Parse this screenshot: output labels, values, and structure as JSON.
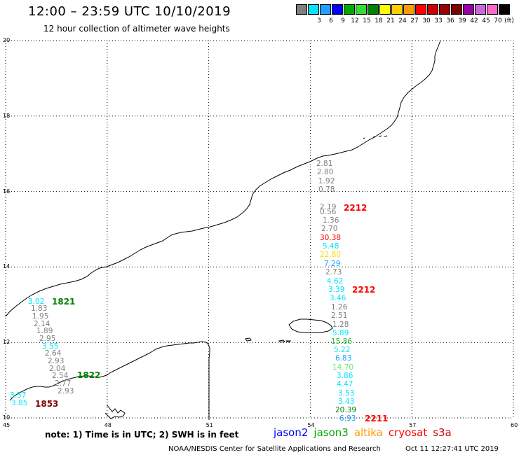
{
  "header": {
    "title": "12:00 – 23:59 UTC 10/10/2019",
    "subtitle": "12 hour collection of altimeter wave heights"
  },
  "legend": {
    "unit": "(ft)",
    "entries": [
      {
        "label": "",
        "color": "#7f7f7f"
      },
      {
        "label": "3",
        "color": "#00e5ff"
      },
      {
        "label": "6",
        "color": "#1fa0ff"
      },
      {
        "label": "9",
        "color": "#0000ff"
      },
      {
        "label": "12",
        "color": "#00aa00"
      },
      {
        "label": "15",
        "color": "#33dd33"
      },
      {
        "label": "18",
        "color": "#008000"
      },
      {
        "label": "21",
        "color": "#ffff00"
      },
      {
        "label": "24",
        "color": "#ffcc00"
      },
      {
        "label": "27",
        "color": "#ff9900"
      },
      {
        "label": "30",
        "color": "#ff0000"
      },
      {
        "label": "33",
        "color": "#cc0000"
      },
      {
        "label": "36",
        "color": "#990000"
      },
      {
        "label": "39",
        "color": "#800000"
      },
      {
        "label": "42",
        "color": "#9900aa"
      },
      {
        "label": "45",
        "color": "#cc66dd"
      },
      {
        "label": "70",
        "color": "#ff66cc"
      },
      {
        "label": "",
        "color": "#000000"
      }
    ]
  },
  "map": {
    "lon_range": [
      45,
      60
    ],
    "lat_range": [
      10,
      20
    ],
    "lon_ticks": [
      "45",
      "48",
      "51",
      "54",
      "57",
      "60"
    ],
    "lat_ticks": [
      "10",
      "12",
      "14",
      "16",
      "18",
      "20"
    ],
    "grid": "dotted"
  },
  "track_times": [
    {
      "label": "1821",
      "color": "#008000"
    },
    {
      "label": "1822",
      "color": "#008000"
    },
    {
      "label": "1853",
      "color": "#800000"
    },
    {
      "label": "2212",
      "color": "#ff0000"
    },
    {
      "label": "2212",
      "color": "#ff0000"
    },
    {
      "label": "2211",
      "color": "#ff0000"
    }
  ],
  "wave_heights": {
    "west_track": [
      {
        "v": "3.02",
        "c": "#00e5ff"
      },
      {
        "v": "1.83",
        "c": "#7f7f7f"
      },
      {
        "v": "1.95",
        "c": "#7f7f7f"
      },
      {
        "v": "2.14",
        "c": "#7f7f7f"
      },
      {
        "v": "1.89",
        "c": "#7f7f7f"
      },
      {
        "v": "2.95",
        "c": "#7f7f7f"
      },
      {
        "v": "3.55",
        "c": "#00e5ff"
      },
      {
        "v": "2.64",
        "c": "#7f7f7f"
      },
      {
        "v": "2.93",
        "c": "#7f7f7f"
      },
      {
        "v": "2.04",
        "c": "#7f7f7f"
      },
      {
        "v": "2.54",
        "c": "#7f7f7f"
      },
      {
        "v": "2.77",
        "c": "#7f7f7f"
      },
      {
        "v": "2.93",
        "c": "#7f7f7f"
      },
      {
        "v": "3.57",
        "c": "#00e5ff"
      },
      {
        "v": "3.85",
        "c": "#00e5ff"
      }
    ],
    "east_track": [
      {
        "v": "2.81",
        "c": "#7f7f7f"
      },
      {
        "v": "2.80",
        "c": "#7f7f7f"
      },
      {
        "v": "1.92",
        "c": "#7f7f7f"
      },
      {
        "v": "0.78",
        "c": "#7f7f7f"
      },
      {
        "v": "2.19",
        "c": "#7f7f7f"
      },
      {
        "v": "0.56",
        "c": "#7f7f7f"
      },
      {
        "v": "1.36",
        "c": "#7f7f7f"
      },
      {
        "v": "2.70",
        "c": "#7f7f7f"
      },
      {
        "v": "30.38",
        "c": "#ff0000"
      },
      {
        "v": "5.48",
        "c": "#00e5ff"
      },
      {
        "v": "22.80",
        "c": "#ffdd00"
      },
      {
        "v": "7.29",
        "c": "#1fa0ff"
      },
      {
        "v": "2.73",
        "c": "#7f7f7f"
      },
      {
        "v": "4.62",
        "c": "#00e5ff"
      },
      {
        "v": "3.39",
        "c": "#00e5ff"
      },
      {
        "v": "3.46",
        "c": "#00e5ff"
      },
      {
        "v": "1.26",
        "c": "#7f7f7f"
      },
      {
        "v": "2.51",
        "c": "#7f7f7f"
      },
      {
        "v": "1.28",
        "c": "#7f7f7f"
      },
      {
        "v": "5.89",
        "c": "#00e5ff"
      },
      {
        "v": "15.86",
        "c": "#33bb33"
      },
      {
        "v": "5.22",
        "c": "#00e5ff"
      },
      {
        "v": "6.83",
        "c": "#1fa0ff"
      },
      {
        "v": "14.70",
        "c": "#66ee66"
      },
      {
        "v": "3.86",
        "c": "#00e5ff"
      },
      {
        "v": "4.47",
        "c": "#00e5ff"
      },
      {
        "v": "3.53",
        "c": "#00e5ff"
      },
      {
        "v": "3.43",
        "c": "#00e5ff"
      },
      {
        "v": "20.39",
        "c": "#008000"
      },
      {
        "v": "6.93",
        "c": "#1fa0ff"
      }
    ]
  },
  "footer": {
    "note": "note: 1) Time is in UTC; 2) SWH is in feet",
    "satellites": [
      {
        "name": "jason2",
        "color": "#0000ff"
      },
      {
        "name": "jason3",
        "color": "#00aa00"
      },
      {
        "name": "altika",
        "color": "#ff9900"
      },
      {
        "name": "cryosat",
        "color": "#ff0000"
      },
      {
        "name": "s3a",
        "color": "#cc0000"
      }
    ],
    "credit": "NOAA/NESDIS Center for Satellite Applications and Research",
    "timestamp": "Oct 11 12:27:41 UTC 2019"
  }
}
